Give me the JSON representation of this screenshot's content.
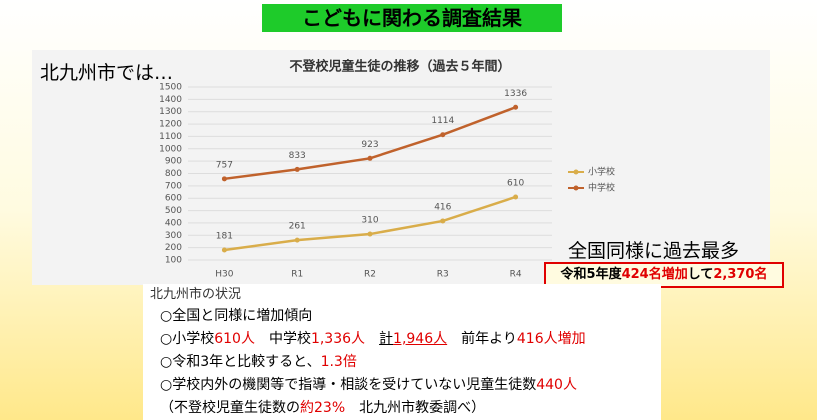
{
  "header": {
    "title": "こどもに関わる調査結果",
    "lead": "北九州市では…",
    "highlight": "全国同様に過去最多",
    "notice": [
      {
        "text": "令和5年度",
        "color": "#000000"
      },
      {
        "text": "424名増加",
        "color": "#e00000"
      },
      {
        "text": "して",
        "color": "#000000"
      },
      {
        "text": "2,370名",
        "color": "#e00000"
      }
    ]
  },
  "chart_data": {
    "type": "line",
    "title": "不登校児童生徒の推移（過去５年間）",
    "categories": [
      "H30",
      "R1",
      "R2",
      "R3",
      "R4"
    ],
    "series": [
      {
        "name": "小学校",
        "color": "#d9ad4a",
        "values": [
          181,
          261,
          310,
          416,
          610
        ]
      },
      {
        "name": "中学校",
        "color": "#c0622c",
        "values": [
          757,
          833,
          923,
          1114,
          1336
        ]
      }
    ],
    "ylim": [
      100,
      1500
    ],
    "yticks": [
      100,
      200,
      300,
      400,
      500,
      600,
      700,
      800,
      900,
      1000,
      1100,
      1200,
      1300,
      1400,
      1500
    ],
    "grid": true,
    "legend": "right"
  },
  "status": {
    "heading": "北九州市の状況",
    "lines": [
      [
        {
          "text": "○全国と同様に増加傾向",
          "color": "#000000"
        }
      ],
      [
        {
          "text": "○小学校",
          "color": "#000000"
        },
        {
          "text": "610人",
          "color": "#e00000"
        },
        {
          "text": "　中学校",
          "color": "#000000"
        },
        {
          "text": "1,336人",
          "color": "#e00000"
        },
        {
          "text": "　",
          "color": "#000000"
        },
        {
          "text": "計",
          "color": "#000000",
          "underline": true
        },
        {
          "text": "1,946人",
          "color": "#e00000",
          "underline": true
        },
        {
          "text": "　前年より",
          "color": "#000000"
        },
        {
          "text": "416人増加",
          "color": "#e00000"
        }
      ],
      [
        {
          "text": "○令和3年と比較すると、",
          "color": "#000000"
        },
        {
          "text": "1.3倍",
          "color": "#e00000"
        }
      ],
      [
        {
          "text": "○学校内外の機関等で指導・相談を受けていない児童生徒数",
          "color": "#000000"
        },
        {
          "text": "440人",
          "color": "#e00000"
        }
      ],
      [
        {
          "text": "（不登校児童生徒数の",
          "color": "#000000"
        },
        {
          "text": "約23%",
          "color": "#e00000"
        },
        {
          "text": "　北九州市教委調べ）",
          "color": "#000000"
        }
      ]
    ]
  }
}
